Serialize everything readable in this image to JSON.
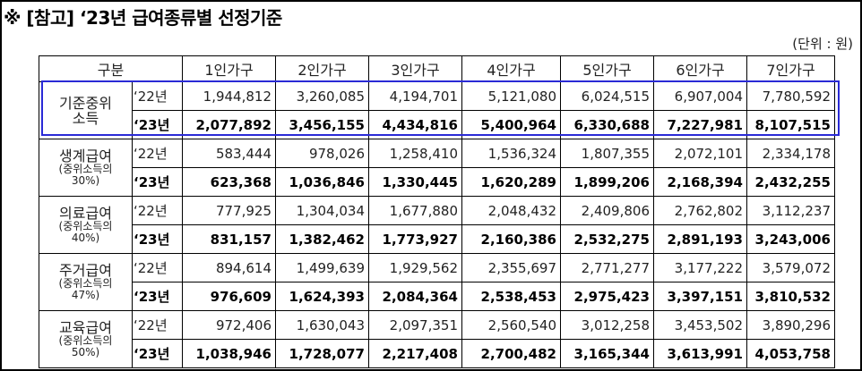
{
  "title": "※ [참고] ‘23년 급여종류별 선정기준",
  "unit": "(단위 : 원)",
  "header": {
    "category": "구분",
    "columns": [
      "1인가구",
      "2인가구",
      "3인가구",
      "4인가구",
      "5인가구",
      "6인가구",
      "7인가구"
    ]
  },
  "groups": [
    {
      "name": "기준중위\n소득",
      "sub": "",
      "rows": [
        {
          "year": "‘22년",
          "values": [
            "1,944,812",
            "3,260,085",
            "4,194,701",
            "5,121,080",
            "6,024,515",
            "6,907,004",
            "7,780,592"
          ]
        },
        {
          "year": "‘23년",
          "values": [
            "2,077,892",
            "3,456,155",
            "4,434,816",
            "5,400,964",
            "6,330,688",
            "7,227,981",
            "8,107,515"
          ]
        }
      ]
    },
    {
      "name": "생계급여",
      "sub": "(중위소득의\n30%)",
      "rows": [
        {
          "year": "‘22년",
          "values": [
            "583,444",
            "978,026",
            "1,258,410",
            "1,536,324",
            "1,807,355",
            "2,072,101",
            "2,334,178"
          ]
        },
        {
          "year": "‘23년",
          "values": [
            "623,368",
            "1,036,846",
            "1,330,445",
            "1,620,289",
            "1,899,206",
            "2,168,394",
            "2,432,255"
          ]
        }
      ]
    },
    {
      "name": "의료급여",
      "sub": "(중위소득의\n40%)",
      "rows": [
        {
          "year": "‘22년",
          "values": [
            "777,925",
            "1,304,034",
            "1,677,880",
            "2,048,432",
            "2,409,806",
            "2,762,802",
            "3,112,237"
          ]
        },
        {
          "year": "‘23년",
          "values": [
            "831,157",
            "1,382,462",
            "1,773,927",
            "2,160,386",
            "2,532,275",
            "2,891,193",
            "3,243,006"
          ]
        }
      ]
    },
    {
      "name": "주거급여",
      "sub": "(중위소득의\n47%)",
      "rows": [
        {
          "year": "‘22년",
          "values": [
            "894,614",
            "1,499,639",
            "1,929,562",
            "2,355,697",
            "2,771,277",
            "3,177,222",
            "3,579,072"
          ]
        },
        {
          "year": "‘23년",
          "values": [
            "976,609",
            "1,624,393",
            "2,084,364",
            "2,538,453",
            "2,975,423",
            "3,397,151",
            "3,810,532"
          ]
        }
      ]
    },
    {
      "name": "교육급여",
      "sub": "(중위소득의\n50%)",
      "rows": [
        {
          "year": "‘22년",
          "values": [
            "972,406",
            "1,630,043",
            "2,097,351",
            "2,560,540",
            "3,012,258",
            "3,453,502",
            "3,890,296"
          ]
        },
        {
          "year": "‘23년",
          "values": [
            "1,038,946",
            "1,728,077",
            "2,217,408",
            "2,700,482",
            "3,165,344",
            "3,613,991",
            "4,053,758"
          ]
        }
      ]
    }
  ]
}
